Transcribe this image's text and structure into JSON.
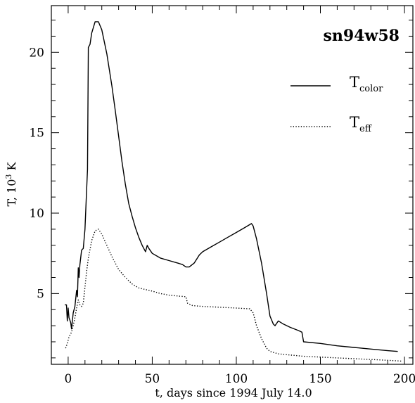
{
  "chart_data": {
    "type": "line",
    "title": "sn94w58",
    "xlabel": "t, days since 1994 July 14.0",
    "ylabel_prefix": "T, 10",
    "ylabel_sup": "3",
    "ylabel_suffix": " K",
    "xlim": [
      -10,
      205
    ],
    "ylim": [
      0.6,
      22.9
    ],
    "x_ticks": [
      0,
      50,
      100,
      150,
      200
    ],
    "y_ticks": [
      5,
      10,
      15,
      20
    ],
    "grid": false,
    "legend_position": "top-right",
    "series": [
      {
        "name": "Tcolor",
        "name_main": "T",
        "name_sub": "color",
        "style": "solid",
        "points": [
          [
            -2,
            4.3
          ],
          [
            -1,
            4.3
          ],
          [
            -0.5,
            3.3
          ],
          [
            0,
            4.1
          ],
          [
            0.5,
            3.5
          ],
          [
            1.5,
            3.2
          ],
          [
            2,
            2.8
          ],
          [
            3,
            3.8
          ],
          [
            4,
            4.2
          ],
          [
            5,
            5.2
          ],
          [
            5.5,
            4.8
          ],
          [
            6,
            6.6
          ],
          [
            6.5,
            6.0
          ],
          [
            7,
            6.8
          ],
          [
            8,
            7.7
          ],
          [
            9,
            7.8
          ],
          [
            10,
            9.0
          ],
          [
            11,
            11.5
          ],
          [
            11.5,
            12.7
          ],
          [
            12,
            20.3
          ],
          [
            13,
            20.5
          ],
          [
            14,
            21.2
          ],
          [
            16,
            21.9
          ],
          [
            18,
            21.9
          ],
          [
            20,
            21.4
          ],
          [
            23,
            19.9
          ],
          [
            26,
            17.9
          ],
          [
            28,
            16.4
          ],
          [
            30,
            14.8
          ],
          [
            32,
            13.2
          ],
          [
            34,
            11.8
          ],
          [
            36,
            10.6
          ],
          [
            38,
            9.8
          ],
          [
            40,
            9.1
          ],
          [
            42,
            8.5
          ],
          [
            44,
            8.0
          ],
          [
            46,
            7.6
          ],
          [
            47,
            8.0
          ],
          [
            48,
            7.8
          ],
          [
            50,
            7.5
          ],
          [
            55,
            7.2
          ],
          [
            60,
            7.05
          ],
          [
            65,
            6.9
          ],
          [
            68,
            6.8
          ],
          [
            70,
            6.65
          ],
          [
            72,
            6.65
          ],
          [
            75,
            6.9
          ],
          [
            78,
            7.4
          ],
          [
            80,
            7.6
          ],
          [
            85,
            7.9
          ],
          [
            90,
            8.2
          ],
          [
            95,
            8.5
          ],
          [
            100,
            8.8
          ],
          [
            105,
            9.1
          ],
          [
            109,
            9.35
          ],
          [
            110,
            9.2
          ],
          [
            112,
            8.4
          ],
          [
            115,
            6.9
          ],
          [
            118,
            5.0
          ],
          [
            120,
            3.6
          ],
          [
            122,
            3.1
          ],
          [
            123,
            3.0
          ],
          [
            125,
            3.3
          ],
          [
            128,
            3.1
          ],
          [
            132,
            2.9
          ],
          [
            137,
            2.7
          ],
          [
            139,
            2.6
          ],
          [
            140,
            2.0
          ],
          [
            150,
            1.9
          ],
          [
            160,
            1.75
          ],
          [
            170,
            1.65
          ],
          [
            180,
            1.55
          ],
          [
            190,
            1.45
          ],
          [
            196,
            1.4
          ]
        ]
      },
      {
        "name": "Teff",
        "name_main": "T",
        "name_sub": "eff",
        "style": "dotted",
        "points": [
          [
            -1.5,
            1.6
          ],
          [
            -0.5,
            1.9
          ],
          [
            0.5,
            2.3
          ],
          [
            2,
            2.6
          ],
          [
            3,
            3.0
          ],
          [
            4,
            3.5
          ],
          [
            5,
            4.1
          ],
          [
            6,
            4.6
          ],
          [
            7,
            4.3
          ],
          [
            8,
            4.2
          ],
          [
            9,
            4.4
          ],
          [
            10,
            5.4
          ],
          [
            11,
            6.4
          ],
          [
            12,
            7.2
          ],
          [
            14,
            8.3
          ],
          [
            16,
            8.9
          ],
          [
            18,
            9.0
          ],
          [
            20,
            8.7
          ],
          [
            23,
            8.0
          ],
          [
            26,
            7.3
          ],
          [
            30,
            6.5
          ],
          [
            34,
            6.0
          ],
          [
            38,
            5.6
          ],
          [
            42,
            5.35
          ],
          [
            46,
            5.25
          ],
          [
            50,
            5.15
          ],
          [
            55,
            5.0
          ],
          [
            60,
            4.9
          ],
          [
            65,
            4.85
          ],
          [
            70,
            4.8
          ],
          [
            71,
            4.4
          ],
          [
            74,
            4.25
          ],
          [
            80,
            4.2
          ],
          [
            90,
            4.15
          ],
          [
            100,
            4.1
          ],
          [
            108,
            4.05
          ],
          [
            110,
            3.8
          ],
          [
            112,
            3.0
          ],
          [
            115,
            2.2
          ],
          [
            118,
            1.6
          ],
          [
            120,
            1.4
          ],
          [
            125,
            1.25
          ],
          [
            130,
            1.2
          ],
          [
            140,
            1.1
          ],
          [
            150,
            1.05
          ],
          [
            160,
            1.0
          ],
          [
            170,
            0.95
          ],
          [
            180,
            0.9
          ],
          [
            190,
            0.85
          ],
          [
            198,
            0.8
          ]
        ]
      }
    ]
  }
}
